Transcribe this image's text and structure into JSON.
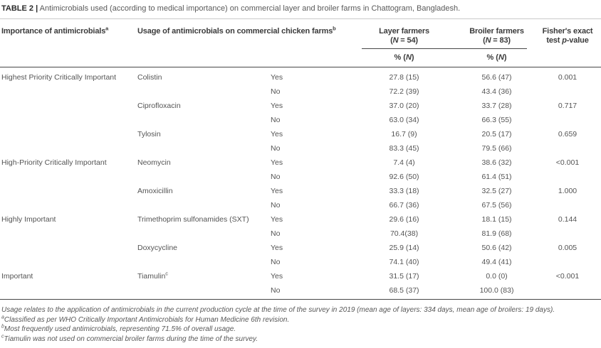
{
  "caption": {
    "label": "TABLE 2 |",
    "text": "Antimicrobials used (according to medical importance) on commercial layer and broiler farms in Chattogram, Bangladesh."
  },
  "header": {
    "importance": "Importance of antimicrobials",
    "importance_sup": "a",
    "usage": "Usage of antimicrobials on commercial chicken farms",
    "usage_sup": "b",
    "layer_name": "Layer farmers",
    "broiler_name": "Broiler farmers",
    "open_paren": "(",
    "n_symbol": "N",
    "layer_n": " = 54)",
    "broiler_n": " = 83)",
    "fisher_line1": "Fisher's exact",
    "fisher_test": "test ",
    "fisher_p": "p",
    "fisher_value": "-value",
    "pct_open": "% (",
    "pct_close": ")"
  },
  "rows": [
    {
      "importance": "Highest Priority Critically Important",
      "antimicrobial": "Colistin",
      "usage": "Yes",
      "layer": "27.8 (15)",
      "broiler": "56.6 (47)",
      "p": "0.001"
    },
    {
      "usage": "No",
      "layer": "72.2 (39)",
      "broiler": "43.4 (36)"
    },
    {
      "antimicrobial": "Ciprofloxacin",
      "usage": "Yes",
      "layer": "37.0 (20)",
      "broiler": "33.7 (28)",
      "p": "0.717"
    },
    {
      "usage": "No",
      "layer": "63.0 (34)",
      "broiler": "66.3 (55)"
    },
    {
      "antimicrobial": "Tylosin",
      "usage": "Yes",
      "layer": "16.7 (9)",
      "broiler": "20.5 (17)",
      "p": "0.659"
    },
    {
      "usage": "No",
      "layer": "83.3 (45)",
      "broiler": "79.5 (66)"
    },
    {
      "importance": "High-Priority Critically Important",
      "antimicrobial": "Neomycin",
      "usage": "Yes",
      "layer": "7.4 (4)",
      "broiler": "38.6 (32)",
      "p": "<0.001"
    },
    {
      "usage": "No",
      "layer": "92.6 (50)",
      "broiler": "61.4 (51)"
    },
    {
      "antimicrobial": "Amoxicillin",
      "usage": "Yes",
      "layer": "33.3 (18)",
      "broiler": "32.5 (27)",
      "p": "1.000"
    },
    {
      "usage": "No",
      "layer": "66.7 (36)",
      "broiler": "67.5 (56)"
    },
    {
      "importance": "Highly Important",
      "antimicrobial": "Trimethoprim sulfonamides (SXT)",
      "usage": "Yes",
      "layer": "29.6 (16)",
      "broiler": "18.1 (15)",
      "p": "0.144"
    },
    {
      "usage": "No",
      "layer": "70.4(38)",
      "broiler": "81.9 (68)"
    },
    {
      "antimicrobial": "Doxycycline",
      "usage": "Yes",
      "layer": "25.9 (14)",
      "broiler": "50.6 (42)",
      "p": "0.005"
    },
    {
      "usage": "No",
      "layer": "74.1 (40)",
      "broiler": "49.4 (41)"
    },
    {
      "importance": "Important",
      "antimicrobial": "Tiamulin",
      "antimicrobial_sup": "c",
      "usage": "Yes",
      "layer": "31.5 (17)",
      "broiler": "0.0 (0)",
      "p": "<0.001"
    },
    {
      "usage": "No",
      "layer": "68.5 (37)",
      "broiler": "100.0 (83)"
    }
  ],
  "footnotes": {
    "general": "Usage relates to the application of antimicrobials in the current production cycle at the time of the survey in 2019 (mean age of layers: 334 days, mean age of broilers: 19 days).",
    "a_sup": "a",
    "a_text": "Classified as per WHO Critically Important Antimicrobials for Human Medicine 6th revision.",
    "b_sup": "b",
    "b_text": "Most frequently used antimicrobials, representing 71.5% of overall usage.",
    "c_sup": "c",
    "c_text": "Tiamulin was not used on commercial broiler farms during the time of the survey."
  },
  "colors": {
    "caption_label": "#2a2a2a",
    "caption_text": "#595959",
    "header_text": "#3b3b3b",
    "body_text": "#545454",
    "footnote_text": "#575757",
    "rule_dark": "#474747",
    "rule_light": "#c9c9c9",
    "background": "#ffffff"
  }
}
